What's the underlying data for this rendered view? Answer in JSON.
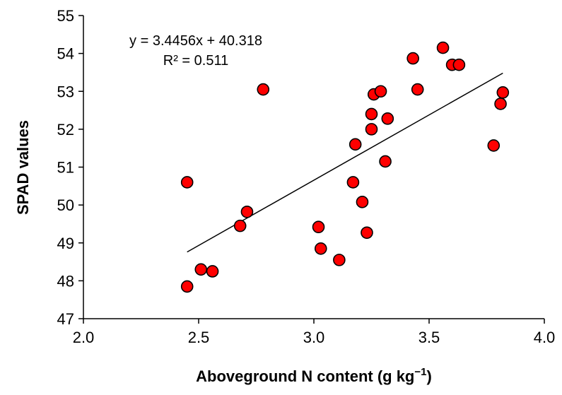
{
  "chart_data": {
    "type": "scatter",
    "xlabel_main": "Aboveground N content (g kg",
    "xlabel_sup": "−1",
    "xlabel_end": ")",
    "ylabel": "SPAD values",
    "xlim": [
      2.0,
      4.0
    ],
    "ylim": [
      47,
      55
    ],
    "x_ticks": [
      "2.0",
      "2.5",
      "3.0",
      "3.5",
      "4.0"
    ],
    "y_ticks": [
      "47",
      "48",
      "49",
      "50",
      "51",
      "52",
      "53",
      "54",
      "55"
    ],
    "grid": false,
    "marker_color": "#ff0000",
    "marker_edge": "#000000",
    "trendline": {
      "equation": "y = 3.4456x + 40.318",
      "r2": "R² = 0.511",
      "slope": 3.4456,
      "intercept": 40.318,
      "x_range": [
        2.45,
        3.82
      ]
    },
    "points": [
      {
        "x": 2.45,
        "y": 47.85
      },
      {
        "x": 2.45,
        "y": 50.6
      },
      {
        "x": 2.51,
        "y": 48.3
      },
      {
        "x": 2.56,
        "y": 48.25
      },
      {
        "x": 2.68,
        "y": 49.45
      },
      {
        "x": 2.71,
        "y": 49.82
      },
      {
        "x": 2.78,
        "y": 53.05
      },
      {
        "x": 3.02,
        "y": 49.42
      },
      {
        "x": 3.03,
        "y": 48.85
      },
      {
        "x": 3.11,
        "y": 48.55
      },
      {
        "x": 3.17,
        "y": 50.6
      },
      {
        "x": 3.18,
        "y": 51.6
      },
      {
        "x": 3.21,
        "y": 50.08
      },
      {
        "x": 3.23,
        "y": 49.27
      },
      {
        "x": 3.25,
        "y": 52.4
      },
      {
        "x": 3.25,
        "y": 52.0
      },
      {
        "x": 3.26,
        "y": 52.92
      },
      {
        "x": 3.29,
        "y": 53.0
      },
      {
        "x": 3.31,
        "y": 51.15
      },
      {
        "x": 3.32,
        "y": 52.28
      },
      {
        "x": 3.43,
        "y": 53.87
      },
      {
        "x": 3.45,
        "y": 53.05
      },
      {
        "x": 3.56,
        "y": 54.15
      },
      {
        "x": 3.6,
        "y": 53.7
      },
      {
        "x": 3.63,
        "y": 53.7
      },
      {
        "x": 3.78,
        "y": 51.57
      },
      {
        "x": 3.81,
        "y": 52.67
      },
      {
        "x": 3.82,
        "y": 52.97
      }
    ]
  }
}
